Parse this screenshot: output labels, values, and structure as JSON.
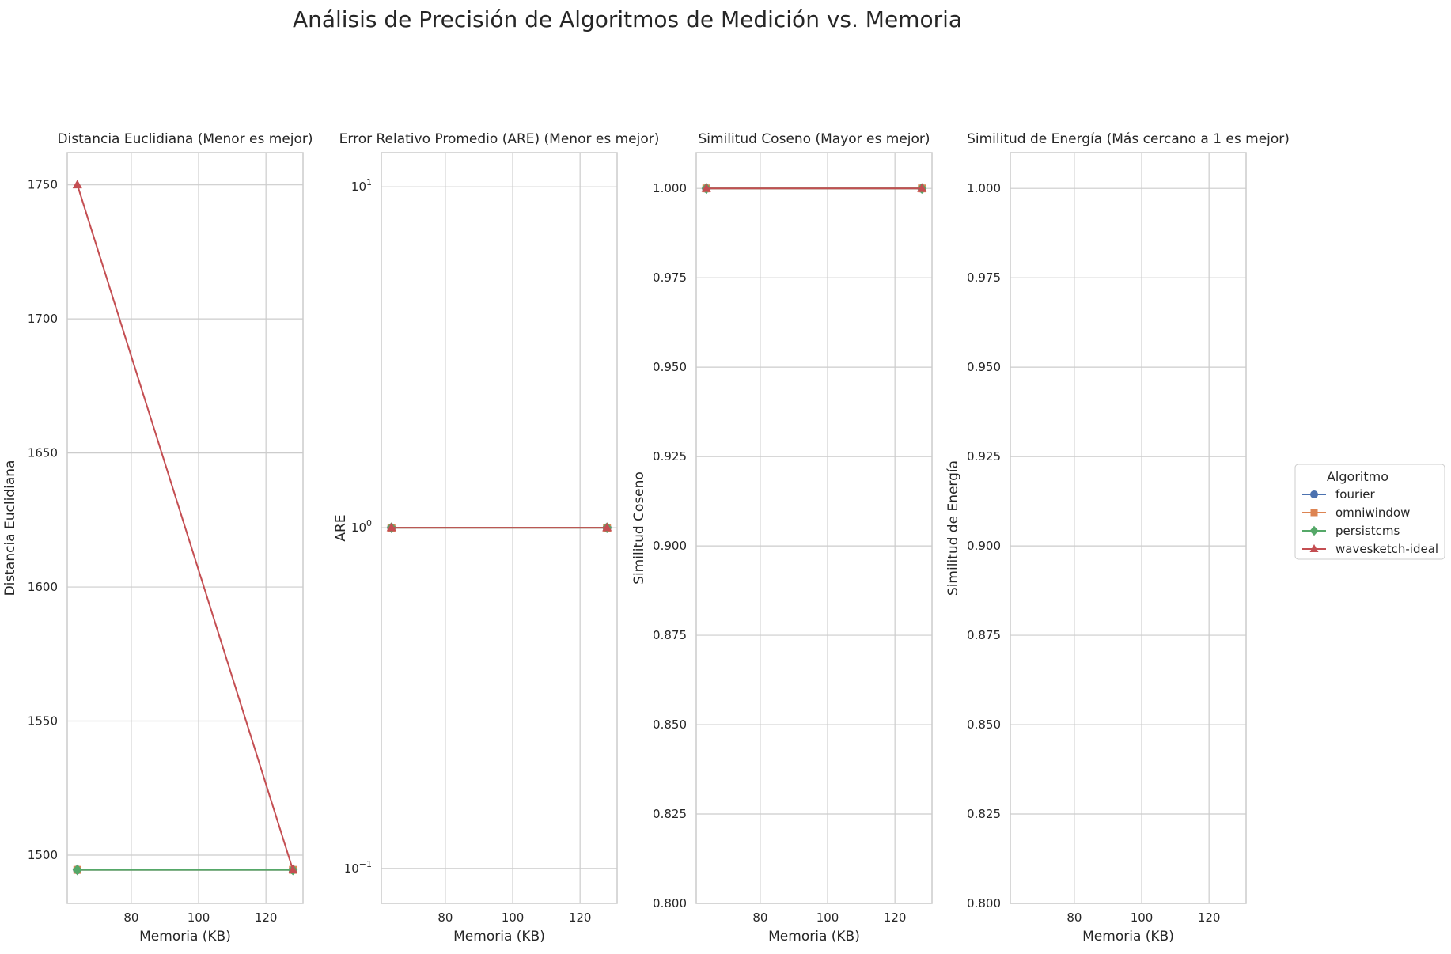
{
  "figure": {
    "title": "Análisis de Precisión de Algoritmos de Medición vs. Memoria"
  },
  "legend": {
    "title": "Algoritmo",
    "placement": "right",
    "entries": [
      {
        "name": "fourier",
        "color": "#4c72b0",
        "marker": "circle"
      },
      {
        "name": "omniwindow",
        "color": "#dd8452",
        "marker": "square"
      },
      {
        "name": "persistcms",
        "color": "#55a868",
        "marker": "diamond"
      },
      {
        "name": "wavesketch-ideal",
        "color": "#c44e52",
        "marker": "triangle"
      }
    ]
  },
  "chart_data": [
    {
      "type": "line",
      "title": "Distancia Euclidiana (Menor es mejor)",
      "xlabel": "Memoria (KB)",
      "ylabel": "Distancia Euclidiana",
      "xlim": [
        61,
        131
      ],
      "ylim": [
        1482,
        1762
      ],
      "yscale": "linear",
      "xticks": [
        80,
        100,
        120
      ],
      "xtick_labels": [
        "80",
        "100",
        "120"
      ],
      "yticks": [
        1500,
        1550,
        1600,
        1650,
        1700,
        1750
      ],
      "ytick_labels": [
        "1500",
        "1550",
        "1600",
        "1650",
        "1700",
        "1750"
      ],
      "grid": true,
      "series": [
        {
          "name": "fourier",
          "x": [
            64,
            128
          ],
          "y": [
            1494.5,
            1494.5
          ]
        },
        {
          "name": "omniwindow",
          "x": [
            64,
            128
          ],
          "y": [
            1494.5,
            1494.5
          ]
        },
        {
          "name": "persistcms",
          "x": [
            64,
            128
          ],
          "y": [
            1494.5,
            1494.5
          ]
        },
        {
          "name": "wavesketch-ideal",
          "x": [
            64,
            128
          ],
          "y": [
            1750,
            1494.5
          ]
        }
      ]
    },
    {
      "type": "line",
      "title": "Error Relativo Promedio (ARE) (Menor es mejor)",
      "xlabel": "Memoria (KB)",
      "ylabel": "ARE",
      "xlim": [
        61,
        131
      ],
      "ylim": [
        0.079,
        12.6
      ],
      "yscale": "log",
      "xticks": [
        80,
        100,
        120
      ],
      "xtick_labels": [
        "80",
        "100",
        "120"
      ],
      "yticks": [
        0.1,
        1,
        10
      ],
      "ytick_labels": [
        {
          "base": "10",
          "exp": "−1"
        },
        {
          "base": "10",
          "exp": "0"
        },
        {
          "base": "10",
          "exp": "1"
        }
      ],
      "grid": true,
      "series": [
        {
          "name": "fourier",
          "x": [
            64,
            128
          ],
          "y": [
            1.0,
            1.0
          ]
        },
        {
          "name": "omniwindow",
          "x": [
            64,
            128
          ],
          "y": [
            1.0,
            1.0
          ]
        },
        {
          "name": "persistcms",
          "x": [
            64,
            128
          ],
          "y": [
            1.0,
            1.0
          ]
        },
        {
          "name": "wavesketch-ideal",
          "x": [
            64,
            128
          ],
          "y": [
            1.0,
            1.0
          ]
        }
      ]
    },
    {
      "type": "line",
      "title": "Similitud Coseno (Mayor es mejor)",
      "xlabel": "Memoria (KB)",
      "ylabel": "Similitud Coseno",
      "xlim": [
        61,
        131
      ],
      "ylim": [
        0.8,
        1.01
      ],
      "yscale": "linear",
      "xticks": [
        80,
        100,
        120
      ],
      "xtick_labels": [
        "80",
        "100",
        "120"
      ],
      "yticks": [
        0.8,
        0.825,
        0.85,
        0.875,
        0.9,
        0.925,
        0.95,
        0.975,
        1.0
      ],
      "ytick_labels": [
        "0.800",
        "0.825",
        "0.850",
        "0.875",
        "0.900",
        "0.925",
        "0.950",
        "0.975",
        "1.000"
      ],
      "grid": true,
      "series": [
        {
          "name": "fourier",
          "x": [
            64,
            128
          ],
          "y": [
            1.0,
            1.0
          ]
        },
        {
          "name": "omniwindow",
          "x": [
            64,
            128
          ],
          "y": [
            1.0,
            1.0
          ]
        },
        {
          "name": "persistcms",
          "x": [
            64,
            128
          ],
          "y": [
            1.0,
            1.0
          ]
        },
        {
          "name": "wavesketch-ideal",
          "x": [
            64,
            128
          ],
          "y": [
            1.0,
            1.0
          ]
        }
      ]
    },
    {
      "type": "line",
      "title": "Similitud de Energía (Más cercano a 1 es mejor)",
      "xlabel": "Memoria (KB)",
      "ylabel": "Similitud de Energía",
      "xlim": [
        61,
        131
      ],
      "ylim": [
        0.8,
        1.01
      ],
      "yscale": "linear",
      "xticks": [
        80,
        100,
        120
      ],
      "xtick_labels": [
        "80",
        "100",
        "120"
      ],
      "yticks": [
        0.8,
        0.825,
        0.85,
        0.875,
        0.9,
        0.925,
        0.95,
        0.975,
        1.0
      ],
      "ytick_labels": [
        "0.800",
        "0.825",
        "0.850",
        "0.875",
        "0.900",
        "0.925",
        "0.950",
        "0.975",
        "1.000"
      ],
      "grid": true,
      "series": []
    }
  ]
}
